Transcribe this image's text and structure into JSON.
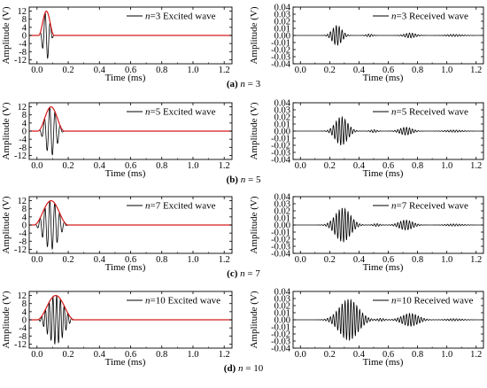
{
  "figure": {
    "rows": [
      {
        "caption": {
          "letter": "(a)",
          "var": "n",
          "rest": " = 3"
        },
        "charts": [
          {
            "type": "line",
            "legend": {
              "var": "n",
              "rest": "=3 Excited wave"
            },
            "xlabel": "Time (ms)",
            "ylabel": "Amplitude (V)",
            "xlim": [
              -0.05,
              1.25
            ],
            "ylim": [
              -14,
              14
            ],
            "xticks": [
              0.0,
              0.2,
              0.4,
              0.6,
              0.8,
              1.0,
              1.2
            ],
            "xtick_labels": [
              "0.0",
              "0.2",
              "0.4",
              "0.6",
              "0.8",
              "1.0",
              "1.2"
            ],
            "yticks": [
              12,
              8,
              4,
              0,
              -4,
              -8,
              -12
            ],
            "ytick_labels": [
              "12",
              "8",
              "4",
              "0",
              "-4",
              "-8",
              "-12"
            ],
            "series": [
              {
                "kind": "burst",
                "center": 0.06,
                "halfwidth": 0.05,
                "amplitude": 12,
                "cycles": 3,
                "color": "#000000"
              },
              {
                "kind": "envelope",
                "center": 0.06,
                "halfwidth": 0.05,
                "amplitude": 12,
                "color": "#d81b1b"
              }
            ],
            "grid": false
          },
          {
            "type": "line",
            "legend": {
              "var": "n",
              "rest": "=3 Received wave"
            },
            "xlabel": "Time (ms)",
            "ylabel": "Amplitude (V)",
            "xlim": [
              -0.05,
              1.25
            ],
            "ylim": [
              -0.04,
              0.04
            ],
            "xticks": [
              0.0,
              0.2,
              0.4,
              0.6,
              0.8,
              1.0,
              1.2
            ],
            "xtick_labels": [
              "0.0",
              "0.2",
              "0.4",
              "0.6",
              "0.8",
              "1.0",
              "1.2"
            ],
            "yticks": [
              0.04,
              0.03,
              0.02,
              0.01,
              0.0,
              -0.01,
              -0.02,
              -0.03,
              -0.04
            ],
            "ytick_labels": [
              "0.04",
              "0.03",
              "0.02",
              "0.01",
              "0.00",
              "-0.01",
              "-0.02",
              "-0.03",
              "-0.04"
            ],
            "series": [
              {
                "kind": "received",
                "packets": [
                  {
                    "center": 0.25,
                    "halfwidth": 0.07,
                    "amplitude": 0.014,
                    "period": 0.02
                  },
                  {
                    "center": 0.47,
                    "halfwidth": 0.05,
                    "amplitude": 0.002,
                    "period": 0.02
                  },
                  {
                    "center": 0.75,
                    "halfwidth": 0.08,
                    "amplitude": 0.0035,
                    "period": 0.02
                  },
                  {
                    "center": 1.05,
                    "halfwidth": 0.12,
                    "amplitude": 0.0015,
                    "period": 0.02
                  }
                ],
                "color": "#000000"
              }
            ],
            "grid": false
          }
        ]
      },
      {
        "caption": {
          "letter": "(b)",
          "var": "n",
          "rest": " = 5"
        },
        "charts": [
          {
            "type": "line",
            "legend": {
              "var": "n",
              "rest": "=5 Excited wave"
            },
            "xlabel": "Time (ms)",
            "ylabel": "Amplitude (V)",
            "xlim": [
              -0.05,
              1.25
            ],
            "ylim": [
              -14,
              14
            ],
            "xticks": [
              0.0,
              0.2,
              0.4,
              0.6,
              0.8,
              1.0,
              1.2
            ],
            "xtick_labels": [
              "0.0",
              "0.2",
              "0.4",
              "0.6",
              "0.8",
              "1.0",
              "1.2"
            ],
            "yticks": [
              12,
              8,
              4,
              0,
              -4,
              -8,
              -12
            ],
            "ytick_labels": [
              "12",
              "8",
              "4",
              "0",
              "-4",
              "-8",
              "-12"
            ],
            "series": [
              {
                "kind": "burst",
                "center": 0.09,
                "halfwidth": 0.085,
                "amplitude": 12,
                "cycles": 5,
                "color": "#000000"
              },
              {
                "kind": "envelope",
                "center": 0.09,
                "halfwidth": 0.085,
                "amplitude": 12,
                "color": "#d81b1b"
              }
            ],
            "grid": false
          },
          {
            "type": "line",
            "legend": {
              "var": "n",
              "rest": "=5 Received wave"
            },
            "xlabel": "Time (ms)",
            "ylabel": "Amplitude (V)",
            "xlim": [
              -0.05,
              1.25
            ],
            "ylim": [
              -0.04,
              0.04
            ],
            "xticks": [
              0.0,
              0.2,
              0.4,
              0.6,
              0.8,
              1.0,
              1.2
            ],
            "xtick_labels": [
              "0.0",
              "0.2",
              "0.4",
              "0.6",
              "0.8",
              "1.0",
              "1.2"
            ],
            "yticks": [
              0.04,
              0.03,
              0.02,
              0.01,
              0.0,
              -0.01,
              -0.02,
              -0.03,
              -0.04
            ],
            "ytick_labels": [
              "0.04",
              "0.03",
              "0.02",
              "0.01",
              "0.00",
              "-0.01",
              "-0.02",
              "-0.03",
              "-0.04"
            ],
            "series": [
              {
                "kind": "received",
                "packets": [
                  {
                    "center": 0.28,
                    "halfwidth": 0.09,
                    "amplitude": 0.02,
                    "period": 0.02
                  },
                  {
                    "center": 0.5,
                    "halfwidth": 0.05,
                    "amplitude": 0.002,
                    "period": 0.02
                  },
                  {
                    "center": 0.72,
                    "halfwidth": 0.09,
                    "amplitude": 0.0055,
                    "period": 0.02
                  },
                  {
                    "center": 1.05,
                    "halfwidth": 0.12,
                    "amplitude": 0.0015,
                    "period": 0.02
                  }
                ],
                "color": "#000000"
              }
            ],
            "grid": false
          }
        ]
      },
      {
        "caption": {
          "letter": "(c)",
          "var": "n",
          "rest": " = 7"
        },
        "charts": [
          {
            "type": "line",
            "legend": {
              "var": "n",
              "rest": "=7 Excited wave"
            },
            "xlabel": "Time (ms)",
            "ylabel": "Amplitude (V)",
            "xlim": [
              -0.05,
              1.25
            ],
            "ylim": [
              -14,
              14
            ],
            "xticks": [
              0.0,
              0.2,
              0.4,
              0.6,
              0.8,
              1.0,
              1.2
            ],
            "xtick_labels": [
              "0.0",
              "0.2",
              "0.4",
              "0.6",
              "0.8",
              "1.0",
              "1.2"
            ],
            "yticks": [
              12,
              8,
              4,
              0,
              -4,
              -8,
              -12
            ],
            "ytick_labels": [
              "12",
              "8",
              "4",
              "0",
              "-4",
              "-8",
              "-12"
            ],
            "series": [
              {
                "kind": "burst",
                "center": 0.09,
                "halfwidth": 0.11,
                "amplitude": 12,
                "cycles": 7,
                "color": "#000000"
              },
              {
                "kind": "envelope",
                "center": 0.09,
                "halfwidth": 0.11,
                "amplitude": 12,
                "color": "#d81b1b"
              }
            ],
            "grid": false
          },
          {
            "type": "line",
            "legend": {
              "var": "n",
              "rest": "=7 Received wave"
            },
            "xlabel": "Time (ms)",
            "ylabel": "Amplitude (V)",
            "xlim": [
              -0.05,
              1.25
            ],
            "ylim": [
              -0.04,
              0.04
            ],
            "xticks": [
              0.0,
              0.2,
              0.4,
              0.6,
              0.8,
              1.0,
              1.2
            ],
            "xtick_labels": [
              "0.0",
              "0.2",
              "0.4",
              "0.6",
              "0.8",
              "1.0",
              "1.2"
            ],
            "yticks": [
              0.04,
              0.03,
              0.02,
              0.01,
              0.0,
              -0.01,
              -0.02,
              -0.03,
              -0.04
            ],
            "ytick_labels": [
              "0.04",
              "0.03",
              "0.02",
              "0.01",
              "0.00",
              "-0.01",
              "-0.02",
              "-0.03",
              "-0.04"
            ],
            "series": [
              {
                "kind": "received",
                "packets": [
                  {
                    "center": 0.29,
                    "halfwidth": 0.11,
                    "amplitude": 0.024,
                    "period": 0.02
                  },
                  {
                    "center": 0.52,
                    "halfwidth": 0.05,
                    "amplitude": 0.002,
                    "period": 0.02
                  },
                  {
                    "center": 0.72,
                    "halfwidth": 0.1,
                    "amplitude": 0.007,
                    "period": 0.02
                  },
                  {
                    "center": 1.05,
                    "halfwidth": 0.12,
                    "amplitude": 0.0015,
                    "period": 0.02
                  }
                ],
                "color": "#000000"
              }
            ],
            "grid": false
          }
        ]
      },
      {
        "caption": {
          "letter": "(d)",
          "var": "n",
          "rest": " = 10"
        },
        "charts": [
          {
            "type": "line",
            "legend": {
              "var": "n",
              "rest": "=10 Excited wave"
            },
            "xlabel": "Time (ms)",
            "ylabel": "Amplitude (V)",
            "xlim": [
              -0.05,
              1.25
            ],
            "ylim": [
              -14,
              14
            ],
            "xticks": [
              0.0,
              0.2,
              0.4,
              0.6,
              0.8,
              1.0,
              1.2
            ],
            "xtick_labels": [
              "0.0",
              "0.2",
              "0.4",
              "0.6",
              "0.8",
              "1.0",
              "1.2"
            ],
            "yticks": [
              12,
              8,
              4,
              0,
              -4,
              -8,
              -12
            ],
            "ytick_labels": [
              "12",
              "8",
              "4",
              "0",
              "-4",
              "-8",
              "-12"
            ],
            "series": [
              {
                "kind": "burst",
                "center": 0.12,
                "halfwidth": 0.12,
                "amplitude": 12,
                "cycles": 10,
                "color": "#000000"
              },
              {
                "kind": "envelope",
                "center": 0.12,
                "halfwidth": 0.12,
                "amplitude": 12,
                "color": "#d81b1b"
              }
            ],
            "grid": false
          },
          {
            "type": "line",
            "legend": {
              "var": "n",
              "rest": "=10 Received wave"
            },
            "xlabel": "Time (ms)",
            "ylabel": "Amplitude (V)",
            "xlim": [
              -0.05,
              1.25
            ],
            "ylim": [
              -0.04,
              0.04
            ],
            "xticks": [
              0.0,
              0.2,
              0.4,
              0.6,
              0.8,
              1.0,
              1.2
            ],
            "xtick_labels": [
              "0.0",
              "0.2",
              "0.4",
              "0.6",
              "0.8",
              "1.0",
              "1.2"
            ],
            "yticks": [
              0.04,
              0.03,
              0.02,
              0.01,
              0.0,
              -0.01,
              -0.02,
              -0.03,
              -0.04
            ],
            "ytick_labels": [
              "0.04",
              "0.03",
              "0.02",
              "0.01",
              "0.00",
              "-0.01",
              "-0.02",
              "-0.03",
              "-0.04"
            ],
            "series": [
              {
                "kind": "received",
                "packets": [
                  {
                    "center": 0.33,
                    "halfwidth": 0.14,
                    "amplitude": 0.029,
                    "period": 0.02
                  },
                  {
                    "center": 0.55,
                    "halfwidth": 0.05,
                    "amplitude": 0.002,
                    "period": 0.02
                  },
                  {
                    "center": 0.75,
                    "halfwidth": 0.12,
                    "amplitude": 0.009,
                    "period": 0.02
                  },
                  {
                    "center": 1.05,
                    "halfwidth": 0.12,
                    "amplitude": 0.0015,
                    "period": 0.02
                  }
                ],
                "color": "#000000"
              }
            ],
            "grid": false
          }
        ]
      }
    ]
  }
}
